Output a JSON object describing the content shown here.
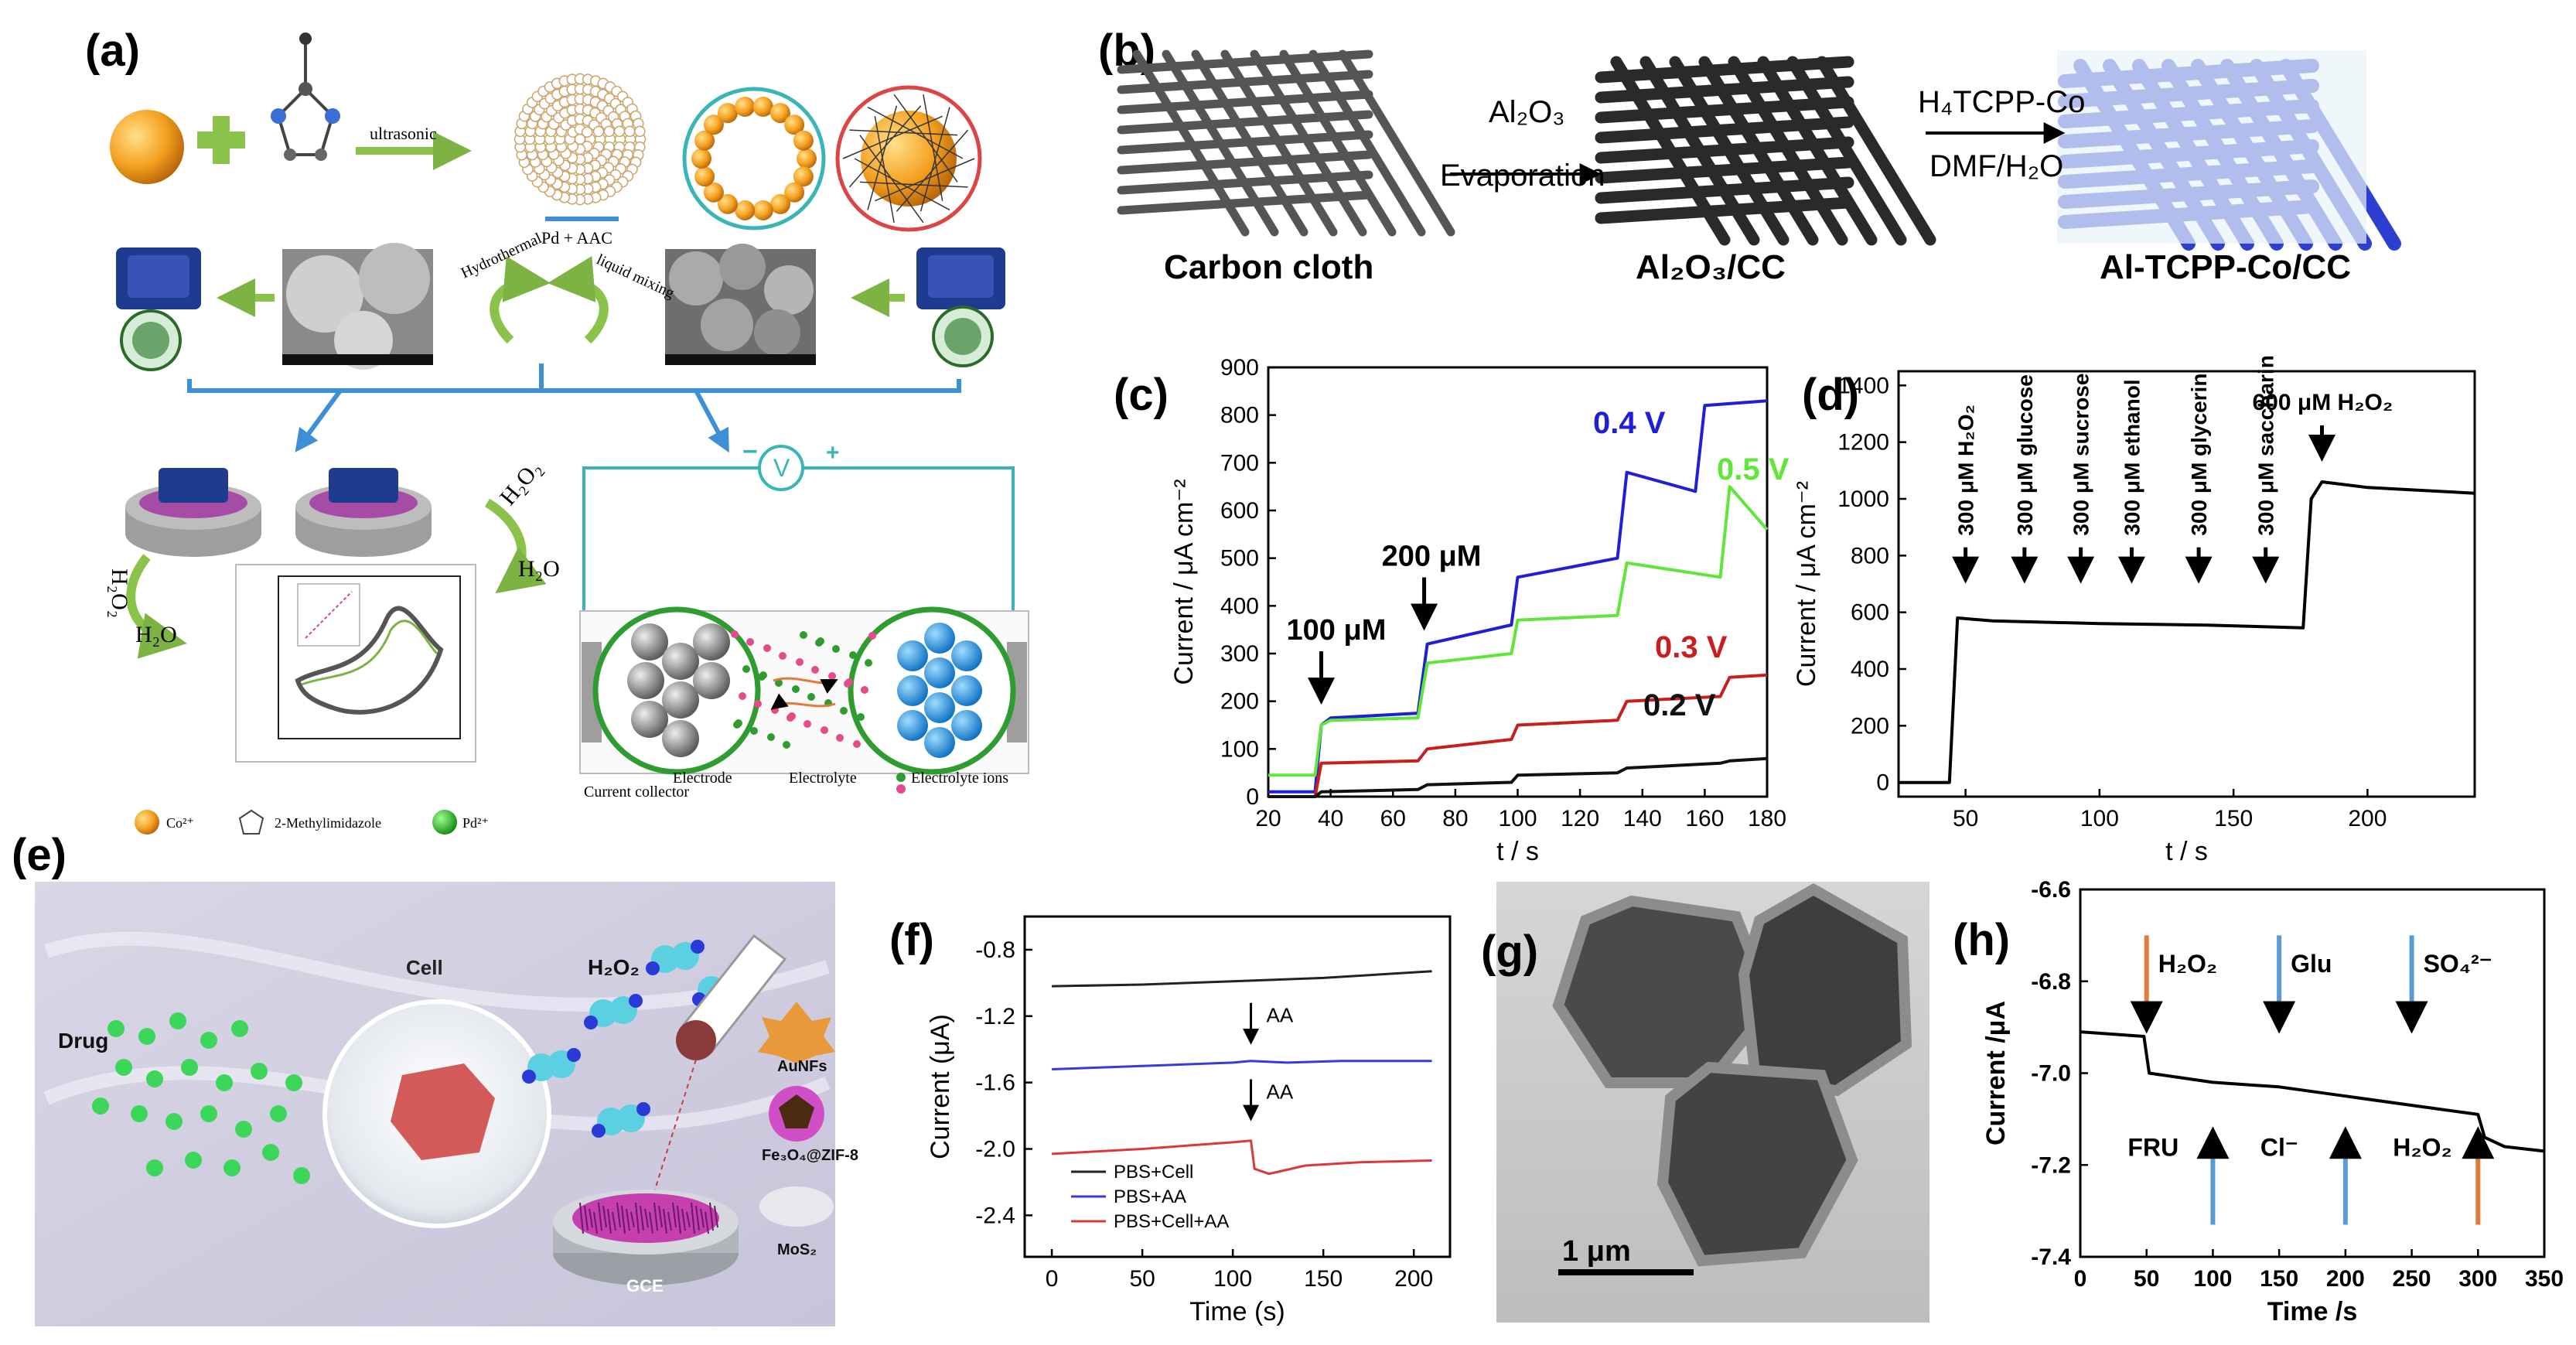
{
  "panels": {
    "a": {
      "tag": "(a)",
      "labels": {
        "ultrasonic": "ultrasonic",
        "pd_aac": "Pd + AAC",
        "hydrothermal": "Hydrothermal",
        "liquid_mixing": "liquid mixing",
        "h2o2_left": "H₂O₂",
        "h2o_left": "H₂O",
        "h2o2_right": "H₂O₂",
        "h2o_right": "H₂O",
        "current_collector": "Current collector",
        "electrode": "Electrode",
        "electrolyte": "Electrolyte",
        "electrolyte_ions": "Electrolyte ions",
        "voltmeter": "V",
        "minus": "−",
        "plus": "+"
      },
      "legend": [
        "Co²⁺",
        "2-Methylimidazole",
        "Pd²⁺"
      ]
    },
    "b": {
      "tag": "(b)",
      "stages": [
        "Carbon cloth",
        "Al₂O₃/CC",
        "Al-TCPP-Co/CC"
      ],
      "step1": [
        "Al₂O₃",
        "Evaporation"
      ],
      "step2": [
        "H₄TCPP-Co",
        "DMF/H₂O"
      ]
    },
    "e": {
      "tag": "(e)",
      "labels": {
        "cell": "Cell",
        "drug": "Drug",
        "h2o2": "H₂O₂",
        "gce": "GCE"
      },
      "legend": [
        "AuNFs",
        "Fe₃O₄@ZIF-8",
        "MoS₂"
      ]
    },
    "g": {
      "tag": "(g)",
      "scale": "1 μm"
    }
  },
  "chart_data": [
    {
      "id": "c",
      "tag": "(c)",
      "type": "line",
      "xlabel": "t / s",
      "ylabel": "Current / μA cm⁻²",
      "xlim": [
        20,
        180
      ],
      "ylim": [
        0,
        900
      ],
      "xticks": [
        20,
        40,
        60,
        80,
        100,
        120,
        140,
        160,
        180
      ],
      "yticks": [
        0,
        100,
        200,
        300,
        400,
        500,
        600,
        700,
        800,
        900
      ],
      "annotations": [
        {
          "text": "100 μM",
          "x": 37,
          "y": 175
        },
        {
          "text": "200 μM",
          "x": 70,
          "y": 330
        }
      ],
      "series": [
        {
          "name": "0.4 V",
          "color": "#1f1fd6",
          "x": [
            20,
            35,
            37,
            40,
            68,
            71,
            98,
            100,
            132,
            135,
            157,
            160,
            180
          ],
          "y": [
            10,
            10,
            150,
            165,
            175,
            320,
            360,
            460,
            500,
            680,
            640,
            820,
            830
          ]
        },
        {
          "name": "0.5 V",
          "color": "#5fe63a",
          "x": [
            20,
            35,
            37,
            40,
            68,
            71,
            98,
            100,
            132,
            135,
            165,
            168,
            180
          ],
          "y": [
            45,
            45,
            150,
            160,
            165,
            280,
            300,
            370,
            380,
            490,
            460,
            650,
            560
          ]
        },
        {
          "name": "0.3 V",
          "color": "#c81e1e",
          "x": [
            20,
            35,
            37,
            68,
            71,
            98,
            100,
            132,
            135,
            165,
            168,
            180
          ],
          "y": [
            0,
            0,
            70,
            75,
            100,
            120,
            150,
            160,
            200,
            210,
            250,
            255
          ]
        },
        {
          "name": "0.2 V",
          "color": "#111111",
          "x": [
            20,
            35,
            37,
            68,
            71,
            98,
            100,
            132,
            135,
            165,
            168,
            180
          ],
          "y": [
            0,
            0,
            10,
            15,
            25,
            30,
            45,
            50,
            60,
            70,
            75,
            80
          ]
        }
      ]
    },
    {
      "id": "d",
      "tag": "(d)",
      "type": "line",
      "xlabel": "t / s",
      "ylabel": "Current / μA cm⁻²",
      "xlim": [
        25,
        240
      ],
      "ylim": [
        -50,
        1450
      ],
      "xticks": [
        50,
        100,
        150,
        200
      ],
      "yticks": [
        0,
        200,
        400,
        600,
        800,
        1000,
        1200,
        1400
      ],
      "annotations": [
        {
          "text": "300 μM H₂O₂",
          "x": 50
        },
        {
          "text": "300 μM glucose",
          "x": 72
        },
        {
          "text": "300 μM sucrose",
          "x": 93
        },
        {
          "text": "300 μM ethanol",
          "x": 112
        },
        {
          "text": "300 μM glycerin",
          "x": 137
        },
        {
          "text": "300 μM saccharin",
          "x": 162
        },
        {
          "text": "600 μM H₂O₂",
          "x": 183
        }
      ],
      "series": [
        {
          "name": "",
          "color": "#000000",
          "x": [
            25,
            44,
            47,
            60,
            100,
            140,
            176,
            179,
            183,
            200,
            220,
            240
          ],
          "y": [
            0,
            0,
            580,
            570,
            560,
            555,
            545,
            1000,
            1060,
            1040,
            1030,
            1020
          ]
        }
      ]
    },
    {
      "id": "f",
      "tag": "(f)",
      "type": "line",
      "xlabel": "Time (s)",
      "ylabel": "Current (μA)",
      "xlim": [
        -15,
        220
      ],
      "ylim": [
        -2.65,
        -0.6
      ],
      "xticks": [
        0,
        50,
        100,
        150,
        200
      ],
      "yticks": [
        -0.8,
        -1.2,
        -1.6,
        -2.0,
        -2.4
      ],
      "annotations": [
        {
          "text": "AA",
          "x": 110,
          "y": -1.4
        },
        {
          "text": "AA",
          "x": 110,
          "y": -1.86
        }
      ],
      "series": [
        {
          "name": "PBS+Cell",
          "color": "#222222",
          "x": [
            0,
            50,
            100,
            150,
            210
          ],
          "y": [
            -1.02,
            -1.01,
            -0.99,
            -0.97,
            -0.93
          ]
        },
        {
          "name": "PBS+AA",
          "color": "#3a3ad8",
          "x": [
            0,
            50,
            100,
            110,
            130,
            160,
            210
          ],
          "y": [
            -1.52,
            -1.5,
            -1.48,
            -1.47,
            -1.48,
            -1.47,
            -1.47
          ]
        },
        {
          "name": "PBS+Cell+AA",
          "color": "#d83a3a",
          "x": [
            0,
            50,
            100,
            110,
            112,
            120,
            140,
            170,
            210
          ],
          "y": [
            -2.03,
            -2.0,
            -1.96,
            -1.95,
            -2.12,
            -2.15,
            -2.1,
            -2.08,
            -2.07
          ]
        }
      ]
    },
    {
      "id": "h",
      "tag": "(h)",
      "type": "line",
      "xlabel": "Time /s",
      "ylabel": "Current /μA",
      "xlim": [
        0,
        350
      ],
      "ylim": [
        -7.4,
        -6.6
      ],
      "xticks": [
        0,
        50,
        100,
        150,
        200,
        250,
        300,
        350
      ],
      "yticks": [
        -6.6,
        -6.8,
        -7.0,
        -7.2,
        -7.4
      ],
      "annotations": [
        {
          "text": "H₂O₂",
          "x": 50,
          "dir": "down",
          "color": "#e07b39"
        },
        {
          "text": "Glu",
          "x": 150,
          "dir": "down",
          "color": "#5b9bd5"
        },
        {
          "text": "SO₄²⁻",
          "x": 250,
          "dir": "down",
          "color": "#5b9bd5"
        },
        {
          "text": "FRU",
          "x": 100,
          "dir": "up",
          "color": "#5b9bd5"
        },
        {
          "text": "Cl⁻",
          "x": 200,
          "dir": "up",
          "color": "#5b9bd5"
        },
        {
          "text": "H₂O₂",
          "x": 300,
          "dir": "up",
          "color": "#e07b39"
        }
      ],
      "series": [
        {
          "name": "",
          "color": "#000000",
          "x": [
            0,
            48,
            52,
            100,
            150,
            200,
            250,
            300,
            305,
            320,
            350
          ],
          "y": [
            -6.91,
            -6.92,
            -7.0,
            -7.02,
            -7.03,
            -7.05,
            -7.07,
            -7.09,
            -7.14,
            -7.16,
            -7.17
          ]
        }
      ]
    }
  ]
}
